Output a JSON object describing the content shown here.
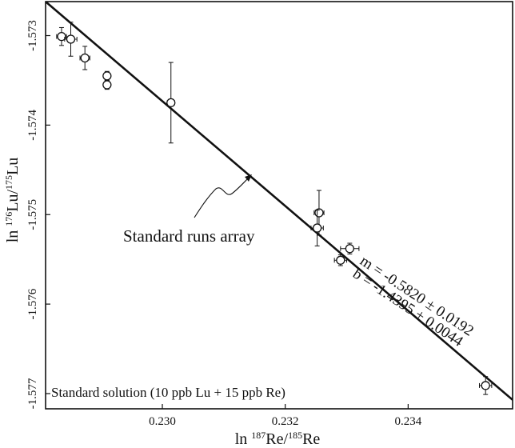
{
  "chart_data": {
    "type": "scatter",
    "xlabel": {
      "prefix": "ln ",
      "sup1": "187",
      "mid": "Re/",
      "sup2": "185",
      "suffix": "Re"
    },
    "ylabel": {
      "prefix": "ln ",
      "sup1": "176",
      "mid": "Lu/",
      "sup2": "175",
      "suffix": "Lu"
    },
    "xlim": [
      0.2281,
      0.2357
    ],
    "ylim": [
      -1.57717,
      -1.57262
    ],
    "x_ticks": [
      {
        "value": 0.23,
        "label": "0.230"
      },
      {
        "value": 0.232,
        "label": "0.232"
      },
      {
        "value": 0.234,
        "label": "0.234"
      }
    ],
    "y_ticks": [
      {
        "value": -1.573,
        "label": "-1.573"
      },
      {
        "value": -1.574,
        "label": "-1.574"
      },
      {
        "value": -1.575,
        "label": "-1.575"
      },
      {
        "value": -1.576,
        "label": "-1.576"
      },
      {
        "value": -1.577,
        "label": "-1.577"
      }
    ],
    "points": [
      {
        "x": 0.22836,
        "y": -1.57301,
        "yerr": 0.0001,
        "xerr": 8e-05
      },
      {
        "x": 0.22851,
        "y": -1.57304,
        "yerr": 0.00019,
        "xerr": 0.0001
      },
      {
        "x": 0.22874,
        "y": -1.57325,
        "yerr": 0.00013,
        "xerr": 8e-05
      },
      {
        "x": 0.2291,
        "y": -1.57345,
        "yerr": 5e-05,
        "xerr": 5e-05
      },
      {
        "x": 0.2291,
        "y": -1.57355,
        "yerr": 5e-05,
        "xerr": 5e-05
      },
      {
        "x": 0.23014,
        "y": -1.57375,
        "yerr": 0.00045,
        "xerr": 6e-05
      },
      {
        "x": 0.23255,
        "y": -1.57498,
        "yerr": 0.00025,
        "xerr": 8e-05
      },
      {
        "x": 0.23252,
        "y": -1.57515,
        "yerr": 0.0002,
        "xerr": 0.0001
      },
      {
        "x": 0.23305,
        "y": -1.57538,
        "yerr": 6e-05,
        "xerr": 0.00015
      },
      {
        "x": 0.2329,
        "y": -1.57551,
        "yerr": 6e-05,
        "xerr": 0.0001
      },
      {
        "x": 0.23526,
        "y": -1.57691,
        "yerr": 0.0001,
        "xerr": 0.0001
      }
    ],
    "fit_line": {
      "x": [
        0.2281,
        0.2357
      ],
      "y": [
        -1.57262,
        -1.57707
      ]
    },
    "annotation_array": "Standard runs array",
    "annotation_m": "m = -0.5820 ± 0.0192",
    "annotation_b": "b = -1.4395 ± 0.0044",
    "caption": "Standard solution (10 ppb Lu + 15 ppb Re)"
  }
}
